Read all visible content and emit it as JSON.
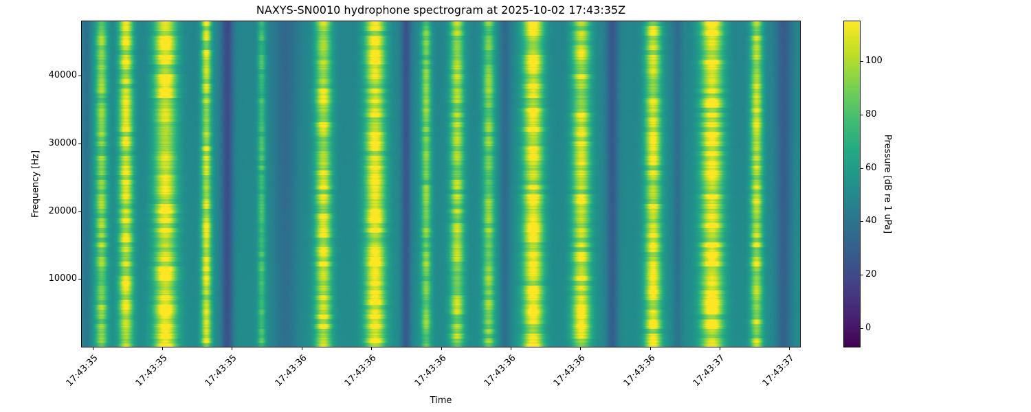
{
  "chart_data": {
    "type": "heatmap",
    "title": "NAXYS-SN0010 hydrophone spectrogram at 2025-10-02 17:43:35Z",
    "xlabel": "Time",
    "ylabel": "Frequency [Hz]",
    "colormap": "viridis",
    "x_tick_labels": [
      "17:43:35",
      "17:43:35",
      "17:43:35",
      "17:43:36",
      "17:43:36",
      "17:43:36",
      "17:43:36",
      "17:43:36",
      "17:43:36",
      "17:43:37",
      "17:43:37"
    ],
    "y_ticks": [
      10000,
      20000,
      30000,
      40000
    ],
    "y_range": [
      0,
      48000
    ],
    "time_span_seconds": 2.2,
    "colorbar": {
      "label": "Pressure [dB re 1 uPa]",
      "ticks": [
        0,
        20,
        40,
        60,
        80,
        100
      ],
      "vmin": -7,
      "vmax": 115
    },
    "background_db": 50,
    "pulses": [
      {
        "t": 0.027,
        "s": 0.006,
        "db": 92
      },
      {
        "t": 0.061,
        "s": 0.007,
        "db": 106
      },
      {
        "t": 0.116,
        "s": 0.011,
        "db": 112
      },
      {
        "t": 0.173,
        "s": 0.005,
        "db": 104
      },
      {
        "t": 0.25,
        "s": 0.004,
        "db": 78
      },
      {
        "t": 0.336,
        "s": 0.008,
        "db": 106
      },
      {
        "t": 0.408,
        "s": 0.01,
        "db": 110
      },
      {
        "t": 0.479,
        "s": 0.005,
        "db": 88
      },
      {
        "t": 0.522,
        "s": 0.007,
        "db": 96
      },
      {
        "t": 0.566,
        "s": 0.006,
        "db": 90
      },
      {
        "t": 0.628,
        "s": 0.01,
        "db": 112
      },
      {
        "t": 0.695,
        "s": 0.009,
        "db": 106
      },
      {
        "t": 0.795,
        "s": 0.008,
        "db": 106
      },
      {
        "t": 0.877,
        "s": 0.011,
        "db": 112
      },
      {
        "t": 0.939,
        "s": 0.006,
        "db": 100
      },
      {
        "t": 0.006,
        "s": 0.004,
        "db": 40
      },
      {
        "t": 0.202,
        "s": 0.006,
        "db": 22
      },
      {
        "t": 0.283,
        "s": 0.012,
        "db": 36
      },
      {
        "t": 0.451,
        "s": 0.005,
        "db": 26
      },
      {
        "t": 0.589,
        "s": 0.005,
        "db": 36
      },
      {
        "t": 0.738,
        "s": 0.006,
        "db": 28
      },
      {
        "t": 0.829,
        "s": 0.005,
        "db": 38
      },
      {
        "t": 0.977,
        "s": 0.008,
        "db": 30
      }
    ]
  }
}
